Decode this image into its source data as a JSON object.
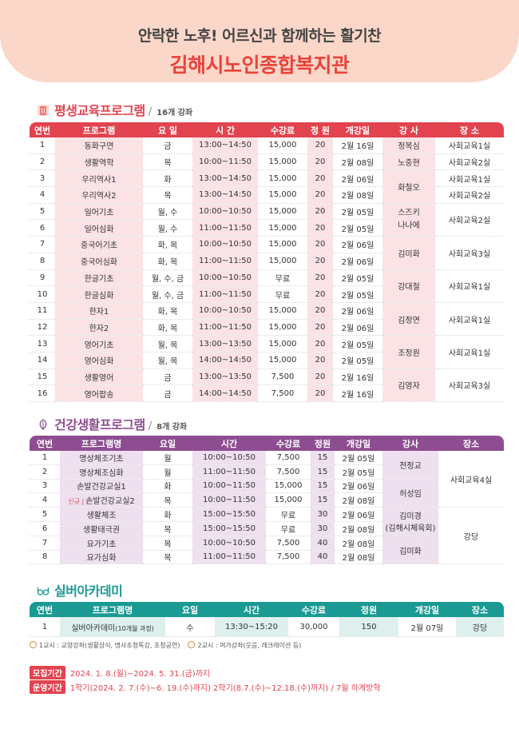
{
  "header": {
    "subtitle": "안락한 노후! 어르신과 함께하는 활기찬",
    "title": "김해시노인종합복지관"
  },
  "colors": {
    "red": "#e2434f",
    "purple": "#8e4d91",
    "teal": "#1a9a93",
    "banner": "#fbd7c9"
  },
  "sections": {
    "lifelong": {
      "title": "평생교육프로그램",
      "count": "16개 강좌",
      "icon": "building-icon"
    },
    "health": {
      "title": "건강생활프로그램",
      "count": "8개 강좌",
      "icon": "leaf-icon"
    },
    "silver": {
      "title": "실버아카데미",
      "icon": "glasses-icon"
    }
  },
  "table1": {
    "headers": [
      "연번",
      "프로그램",
      "요 일",
      "시 간",
      "수강료",
      "정 원",
      "개강일",
      "강 사",
      "장 소"
    ],
    "rows": [
      [
        "1",
        "동화구연",
        "금",
        "13:00~14:50",
        "15,000",
        "20",
        "2월 16일"
      ],
      [
        "2",
        "생활역학",
        "목",
        "10:00~11:50",
        "15,000",
        "20",
        "2월 08일"
      ],
      [
        "3",
        "우리역사1",
        "화",
        "13:00~14:50",
        "15,000",
        "20",
        "2월 06일"
      ],
      [
        "4",
        "우리역사2",
        "목",
        "13:00~14:50",
        "15,000",
        "20",
        "2월 08일"
      ],
      [
        "5",
        "일어기초",
        "월, 수",
        "10:00~10:50",
        "15,000",
        "20",
        "2월 05일"
      ],
      [
        "6",
        "일어심화",
        "월, 수",
        "11:00~11:50",
        "15,000",
        "20",
        "2월 05일"
      ],
      [
        "7",
        "중국어기초",
        "화, 목",
        "10:00~10:50",
        "15,000",
        "20",
        "2월 06일"
      ],
      [
        "8",
        "중국어심화",
        "화, 목",
        "11:00~11:50",
        "15,000",
        "20",
        "2월 06일"
      ],
      [
        "9",
        "한글기초",
        "월, 수, 금",
        "10:00~10:50",
        "무료",
        "20",
        "2월 05일"
      ],
      [
        "10",
        "한글심화",
        "월, 수, 금",
        "11:00~11:50",
        "무료",
        "20",
        "2월 05일"
      ],
      [
        "11",
        "한자1",
        "화, 목",
        "10:00~10:50",
        "15,000",
        "20",
        "2월 06일"
      ],
      [
        "12",
        "한자2",
        "화, 목",
        "11:00~11:50",
        "15,000",
        "20",
        "2월 06일"
      ],
      [
        "13",
        "영어기초",
        "월, 목",
        "13:00~13:50",
        "15,000",
        "20",
        "2월 05일"
      ],
      [
        "14",
        "영어심화",
        "월, 목",
        "14:00~14:50",
        "15,000",
        "20",
        "2월 05일"
      ],
      [
        "15",
        "생활영어",
        "금",
        "13:00~13:50",
        "7,500",
        "20",
        "2월 16일"
      ],
      [
        "16",
        "영어팝송",
        "금",
        "14:00~14:50",
        "7,500",
        "20",
        "2월 16일"
      ]
    ],
    "instructors": [
      "정복심",
      "노중현",
      "화철오",
      "스즈키",
      "나나에",
      "김미화",
      "강대철",
      "김정연",
      "조정원",
      "김영자"
    ],
    "places": [
      "사회교육1실",
      "사회교육2실",
      "사회교육1실",
      "사회교육2실",
      "사회교육2실",
      "사회교육3실",
      "사회교육1실",
      "사회교육1실",
      "사회교육1실",
      "사회교육3실"
    ]
  },
  "table2": {
    "headers": [
      "연번",
      "프로그램명",
      "요일",
      "시간",
      "수강료",
      "정원",
      "개강일",
      "강사",
      "장소"
    ],
    "new_badge": "신규 |",
    "rows": [
      [
        "1",
        "명상체조기초",
        "월",
        "10:00~10:50",
        "7,500",
        "15",
        "2월 05일"
      ],
      [
        "2",
        "명상체조심화",
        "월",
        "11:00~11:50",
        "7,500",
        "15",
        "2월 05일"
      ],
      [
        "3",
        "손발건강교실1",
        "화",
        "10:00~11:50",
        "15,000",
        "15",
        "2월 06일"
      ],
      [
        "4",
        "손발건강교실2",
        "목",
        "10:00~11:50",
        "15,000",
        "15",
        "2월 08일"
      ],
      [
        "5",
        "생활체조",
        "화",
        "15:00~15:50",
        "무료",
        "30",
        "2월 06일"
      ],
      [
        "6",
        "생활태극권",
        "목",
        "15:00~15:50",
        "무료",
        "30",
        "2월 08일"
      ],
      [
        "7",
        "요가기초",
        "목",
        "10:00~10:50",
        "7,500",
        "40",
        "2월 08일"
      ],
      [
        "8",
        "요가심화",
        "목",
        "11:00~11:50",
        "7,500",
        "40",
        "2월 08일"
      ]
    ],
    "instructors": [
      "전정교",
      "허성임",
      "김미경",
      "(김해시체육회)",
      "김미화"
    ],
    "places": [
      "사회교육4실",
      "강당"
    ]
  },
  "table3": {
    "headers": [
      "연번",
      "프로그램명",
      "요일",
      "시간",
      "수강료",
      "정원",
      "개강일",
      "장소"
    ],
    "row": [
      "1",
      "실버아카데미",
      "(10개월 과정)",
      "수",
      "13:30~15:20",
      "30,000",
      "150",
      "2월 07일",
      "강당"
    ]
  },
  "notes": {
    "first": "1교시 : 교양강좌(생활상식, 명사초청특강, 초청공연)",
    "second": "2교시 : 여가강좌(웃음, 레크레이션 등)"
  },
  "info": {
    "recruit_label": "모집기간",
    "recruit_value": "2024. 1. 8.(월)~2024. 5. 31.(금)까지",
    "operate_label": "운영기간",
    "operate_value": "1학기(2024. 2. 7.(수)~6. 19.(수)까지) 2학기(8.7.(수)~12.18.(수)까지) / 7월 하계방학"
  }
}
